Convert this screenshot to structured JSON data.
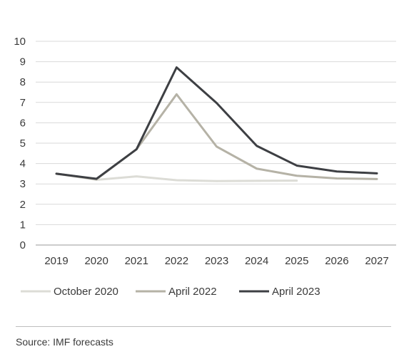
{
  "chart_data": {
    "type": "line",
    "x": [
      "2019",
      "2020",
      "2021",
      "2022",
      "2023",
      "2024",
      "2025",
      "2026",
      "2027"
    ],
    "ylim": [
      0,
      10
    ],
    "yticks": [
      0,
      1,
      2,
      3,
      4,
      5,
      6,
      7,
      8,
      9,
      10
    ],
    "grid": true,
    "legend_position": "bottom",
    "series": [
      {
        "name": "October 2020",
        "color": "#dcdcd6",
        "values": [
          3.5,
          3.2,
          3.37,
          3.18,
          3.14,
          3.15,
          3.16,
          null,
          null
        ]
      },
      {
        "name": "April 2022",
        "color": "#b5b2a6",
        "values": [
          3.5,
          3.23,
          4.7,
          7.4,
          4.83,
          3.75,
          3.4,
          3.27,
          3.24
        ]
      },
      {
        "name": "April 2023",
        "color": "#3d3f43",
        "values": [
          3.5,
          3.25,
          4.7,
          8.72,
          6.97,
          4.87,
          3.9,
          3.61,
          3.52
        ]
      }
    ]
  },
  "source": "Source: IMF forecasts"
}
